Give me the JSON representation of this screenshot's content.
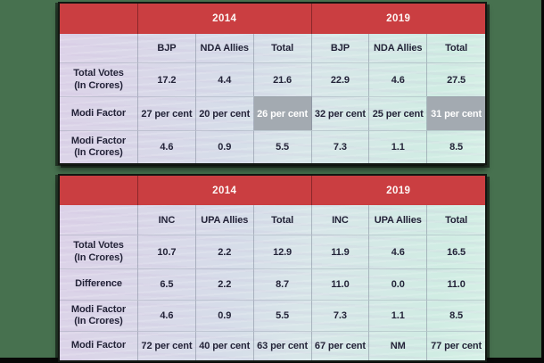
{
  "theme": {
    "canvas_green": "#47714f",
    "edge_black": "#070807",
    "header_red": "#ca3e41",
    "header_text_color": "#fdf7f5",
    "body_text_color": "#232338",
    "highlight_bg": "#a3aab1",
    "highlight_text": "#ffffff",
    "gradient_left": "#dcd2e8",
    "gradient_mid": "#d6dde9",
    "gradient_right": "#d0ece3"
  },
  "tables": [
    {
      "name": "nda-votes-table",
      "year_headers": [
        "2014",
        "2019"
      ],
      "column_headers": [
        "BJP",
        "NDA Allies",
        "Total",
        "BJP",
        "NDA Allies",
        "Total"
      ],
      "rows": [
        {
          "label": "Total Votes\n(In Crores)",
          "values": [
            "17.2",
            "4.4",
            "21.6",
            "22.9",
            "4.6",
            "27.5"
          ],
          "highlights": []
        },
        {
          "label": "Modi Factor",
          "values": [
            "27 per cent",
            "20 per cent",
            "26 per cent",
            "32 per cent",
            "25 per cent",
            "31 per cent"
          ],
          "highlights": [
            2,
            5
          ]
        },
        {
          "label": "Modi Factor\n(In Crores)",
          "values": [
            "4.6",
            "0.9",
            "5.5",
            "7.3",
            "1.1",
            "8.5"
          ],
          "highlights": []
        }
      ]
    },
    {
      "name": "upa-votes-table",
      "year_headers": [
        "2014",
        "2019"
      ],
      "column_headers": [
        "INC",
        "UPA Allies",
        "Total",
        "INC",
        "UPA Allies",
        "Total"
      ],
      "rows": [
        {
          "label": "Total Votes\n(In Crores)",
          "values": [
            "10.7",
            "2.2",
            "12.9",
            "11.9",
            "4.6",
            "16.5"
          ],
          "highlights": []
        },
        {
          "label": "Difference",
          "values": [
            "6.5",
            "2.2",
            "8.7",
            "11.0",
            "0.0",
            "11.0"
          ],
          "highlights": []
        },
        {
          "label": "Modi Factor\n(In Crores)",
          "values": [
            "4.6",
            "0.9",
            "5.5",
            "7.3",
            "1.1",
            "8.5"
          ],
          "highlights": []
        },
        {
          "label": "Modi Factor",
          "values": [
            "72 per cent",
            "40 per cent",
            "63 per cent",
            "67 per cent",
            "NM",
            "77 per cent"
          ],
          "highlights": []
        }
      ]
    }
  ],
  "chart_data": [
    {
      "type": "table",
      "column_groups": [
        "2014",
        "2019"
      ],
      "columns": [
        "",
        "BJP (2014)",
        "NDA Allies (2014)",
        "Total (2014)",
        "BJP (2019)",
        "NDA Allies (2019)",
        "Total (2019)"
      ],
      "rows": [
        [
          "Total Votes (In Crores)",
          17.2,
          4.4,
          21.6,
          22.9,
          4.6,
          27.5
        ],
        [
          "Modi Factor",
          "27 per cent",
          "20 per cent",
          "26 per cent",
          "32 per cent",
          "25 per cent",
          "31 per cent"
        ],
        [
          "Modi Factor (In Crores)",
          4.6,
          0.9,
          5.5,
          7.3,
          1.1,
          8.5
        ]
      ],
      "highlighted_cells": [
        "Modi Factor / Total (2014): 26 per cent",
        "Modi Factor / Total (2019): 31 per cent"
      ]
    },
    {
      "type": "table",
      "column_groups": [
        "2014",
        "2019"
      ],
      "columns": [
        "",
        "INC (2014)",
        "UPA Allies (2014)",
        "Total (2014)",
        "INC (2019)",
        "UPA Allies (2019)",
        "Total (2019)"
      ],
      "rows": [
        [
          "Total Votes (In Crores)",
          10.7,
          2.2,
          12.9,
          11.9,
          4.6,
          16.5
        ],
        [
          "Difference",
          6.5,
          2.2,
          8.7,
          11.0,
          0.0,
          11.0
        ],
        [
          "Modi Factor (In Crores)",
          4.6,
          0.9,
          5.5,
          7.3,
          1.1,
          8.5
        ],
        [
          "Modi Factor",
          "72 per cent",
          "40 per cent",
          "63 per cent",
          "67 per cent",
          "NM",
          "77 per cent"
        ]
      ],
      "highlighted_cells": []
    }
  ]
}
